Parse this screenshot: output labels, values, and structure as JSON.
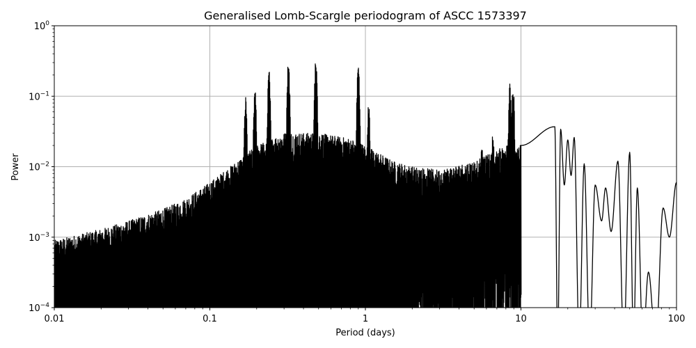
{
  "chart_data": {
    "type": "line",
    "title": "Generalised Lomb-Scargle periodogram of ASCC 1573397",
    "xlabel": "Period (days)",
    "ylabel": "Power",
    "xscale": "log",
    "yscale": "log",
    "xlim": [
      0.01,
      100
    ],
    "ylim": [
      0.0001,
      1
    ],
    "grid": true,
    "legend": null,
    "x_ticks": [
      {
        "value": 0.01,
        "label": "0.01"
      },
      {
        "value": 0.1,
        "label": "0.1"
      },
      {
        "value": 1,
        "label": "1"
      },
      {
        "value": 10,
        "label": "10"
      },
      {
        "value": 100,
        "label": "100"
      }
    ],
    "y_ticks": [
      {
        "value": 0.0001,
        "base": "10",
        "exp": "−4"
      },
      {
        "value": 0.001,
        "base": "10",
        "exp": "−3"
      },
      {
        "value": 0.01,
        "base": "10",
        "exp": "−2"
      },
      {
        "value": 0.1,
        "base": "10",
        "exp": "−1"
      },
      {
        "value": 1,
        "base": "10",
        "exp": "0"
      }
    ],
    "upper_envelope": [
      {
        "period": 0.01,
        "power": 0.0009
      },
      {
        "period": 0.02,
        "power": 0.0013
      },
      {
        "period": 0.03,
        "power": 0.0017
      },
      {
        "period": 0.05,
        "power": 0.0025
      },
      {
        "period": 0.07,
        "power": 0.0035
      },
      {
        "period": 0.1,
        "power": 0.006
      },
      {
        "period": 0.15,
        "power": 0.012
      },
      {
        "period": 0.2,
        "power": 0.02
      },
      {
        "period": 0.3,
        "power": 0.03
      },
      {
        "period": 0.5,
        "power": 0.03
      },
      {
        "period": 0.8,
        "power": 0.025
      },
      {
        "period": 1.0,
        "power": 0.02
      },
      {
        "period": 1.5,
        "power": 0.012
      },
      {
        "period": 2.0,
        "power": 0.01
      },
      {
        "period": 3.0,
        "power": 0.009
      },
      {
        "period": 5.0,
        "power": 0.012
      },
      {
        "period": 8.0,
        "power": 0.02
      },
      {
        "period": 10.0,
        "power": 0.02
      }
    ],
    "notable_peaks": [
      {
        "period": 0.24,
        "power": 0.24
      },
      {
        "period": 0.32,
        "power": 0.33
      },
      {
        "period": 0.48,
        "power": 0.36
      },
      {
        "period": 0.9,
        "power": 0.3
      },
      {
        "period": 0.195,
        "power": 0.13
      },
      {
        "period": 0.17,
        "power": 0.1
      },
      {
        "period": 1.05,
        "power": 0.08
      },
      {
        "period": 8.5,
        "power": 0.16
      },
      {
        "period": 8.9,
        "power": 0.15
      },
      {
        "period": 6.6,
        "power": 0.03
      },
      {
        "period": 5.6,
        "power": 0.02
      }
    ],
    "long_period_oscillation_peaks": [
      {
        "period": 16.5,
        "power": 0.037
      },
      {
        "period": 18.0,
        "power": 0.034
      },
      {
        "period": 20.0,
        "power": 0.024
      },
      {
        "period": 22.0,
        "power": 0.026
      },
      {
        "period": 25.5,
        "power": 0.011
      },
      {
        "period": 30.0,
        "power": 0.0055
      },
      {
        "period": 35.0,
        "power": 0.005
      },
      {
        "period": 42.0,
        "power": 0.012
      },
      {
        "period": 50.0,
        "power": 0.016
      },
      {
        "period": 56.0,
        "power": 0.005
      },
      {
        "period": 66.0,
        "power": 0.00032
      },
      {
        "period": 82.0,
        "power": 0.0026
      },
      {
        "period": 100.0,
        "power": 0.006
      }
    ],
    "long_period_troughs": [
      {
        "period": 19.0,
        "power": 0.0055
      },
      {
        "period": 21.0,
        "power": 0.0075
      },
      {
        "period": 33.0,
        "power": 0.0017
      },
      {
        "period": 38.0,
        "power": 0.0012
      },
      {
        "period": 90.0,
        "power": 0.001
      }
    ],
    "line_color": "#000000",
    "grid_color": "#b0b0b0"
  }
}
